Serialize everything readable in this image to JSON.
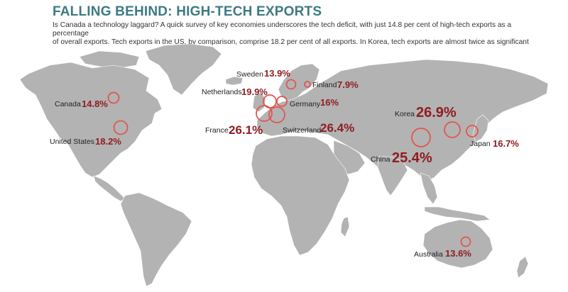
{
  "header": {
    "title": "FALLING BEHIND: HIGH-TECH EXPORTS",
    "subtitle_line1": "Is Canada a technology laggard? A quick survey of key economies underscores the tech deficit, with just 14.8 per cent of high-tech exports as a percentage",
    "subtitle_line2": "of overall exports. Tech exports in the US, by comparison, comprise 18.2 per cent of all exports. In Korea, tech exports are almost twice as significant"
  },
  "colors": {
    "title": "#3d7a82",
    "land": "#b3b3b3",
    "marker": "#e0574f",
    "value": "#8f1d21"
  },
  "markers": [
    {
      "country": "Canada",
      "value_label": "14.8%",
      "value": 14.8
    },
    {
      "country": "United States",
      "value_label": "18.2%",
      "value": 18.2
    },
    {
      "country": "Sweden",
      "value_label": "13.9%",
      "value": 13.9
    },
    {
      "country": "Finland",
      "value_label": "7.9%",
      "value": 7.9
    },
    {
      "country": "Netherlands",
      "value_label": "19.9%",
      "value": 19.9
    },
    {
      "country": "Germany",
      "value_label": "16%",
      "value": 16
    },
    {
      "country": "France",
      "value_label": "26.1%",
      "value": 26.1
    },
    {
      "country": "Switzerland",
      "value_label": "26.4%",
      "value": 26.4
    },
    {
      "country": "Korea",
      "value_label": "26.9%",
      "value": 26.9
    },
    {
      "country": "Japan",
      "value_label": "16.7%",
      "value": 16.7
    },
    {
      "country": "China",
      "value_label": "25.4%",
      "value": 25.4
    },
    {
      "country": "Australia",
      "value_label": "13.6%",
      "value": 13.6
    }
  ]
}
